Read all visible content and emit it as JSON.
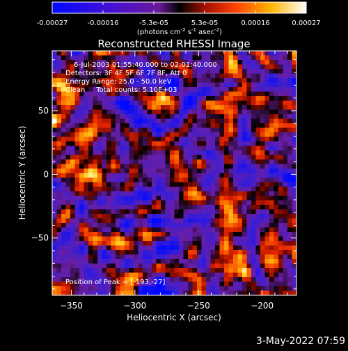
{
  "colorbar": {
    "ticks": [
      "-0.00027",
      "-0.00016",
      "-5.3e-05",
      "5.3e-05",
      "0.00016",
      "0.00027"
    ],
    "unit_parts": {
      "open": "(photons cm",
      "exp1": "-2",
      "mid1": " s",
      "exp2": "-1",
      "mid2": " asec",
      "exp3": "-2",
      "close": ")"
    },
    "range": [
      -0.00027,
      0.00027
    ]
  },
  "chart_data": {
    "type": "heatmap",
    "title": "Reconstructed RHESSI Image",
    "xlabel": "Heliocentric X (arcsec)",
    "ylabel": "Heliocentric Y (arcsec)",
    "xlim": [
      -365,
      -173
    ],
    "ylim": [
      -95,
      97
    ],
    "xticks": [
      -350,
      -300,
      -250,
      -200
    ],
    "yticks": [
      50,
      0,
      -50
    ],
    "annotations": [
      "6-Jul-2003 01:55:40.000 to 02:01:40.000",
      "Detectors: 3F 4F 5F 6F 7F 8F, Att 0",
      "Energy Range: 25.0 - 50.0 keV",
      "Clean     Total counts: 5.10E+03"
    ],
    "peak_label": "Position of Peak = [-193,-27]"
  },
  "timestamp": "3-May-2022 07:59"
}
